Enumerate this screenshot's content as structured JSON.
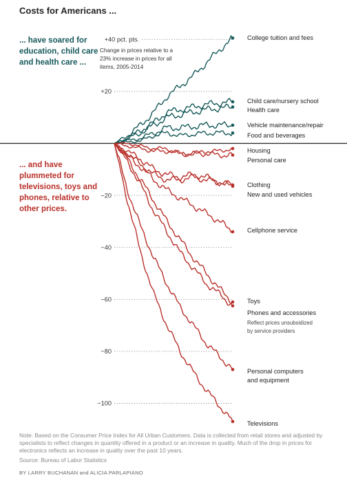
{
  "title": "Costs for Americans ...",
  "intro_up": "... have soared for education, child care and health care ...",
  "intro_down": "... and have plummeted for televisions, toys and phones, relative to other prices.",
  "explainer": [
    "Change in prices relative to a",
    "23% increase in prices for all",
    "items, 2005-2014"
  ],
  "note": "Note: Based on the Consumer Price Index for All Urban Customers. Data is collected from retail stores and adjusted by specialists to reflect changes in quantity offered in a product or an increase in quality. Much of the drop in prices for electronics reflects an increase in quality over the past 10 years.",
  "source": "Source: Bureau of Labor Statistics",
  "credit": "BY LARRY BUCHANAN and ALICIA PARLAPIANO",
  "colors": {
    "up": "#17595a",
    "down": "#b9302a",
    "baseline": "#222222",
    "grid": "#888888"
  },
  "chart_data": {
    "type": "line",
    "x_range": [
      2005,
      2014
    ],
    "ylim": [
      -110,
      42
    ],
    "ylabel": "",
    "grid": "dotted horizontal at labeled ticks",
    "yticks": [
      {
        "value": 40,
        "label": "+40 pct. pts."
      },
      {
        "value": 20,
        "label": "+20"
      },
      {
        "value": -20,
        "label": "−20"
      },
      {
        "value": -40,
        "label": "−40"
      },
      {
        "value": -60,
        "label": "−60"
      },
      {
        "value": -80,
        "label": "−80"
      },
      {
        "value": -100,
        "label": "−100"
      }
    ],
    "series": [
      {
        "name": "College tuition and fees",
        "label_lines": [
          "College tuition and fees"
        ],
        "group": "up",
        "end": 40.5,
        "points": [
          [
            2005,
            0
          ],
          [
            2006,
            3
          ],
          [
            2007,
            7
          ],
          [
            2008,
            12
          ],
          [
            2009,
            18
          ],
          [
            2010,
            22
          ],
          [
            2011,
            26
          ],
          [
            2012,
            31
          ],
          [
            2013,
            36
          ],
          [
            2014,
            40.5
          ]
        ]
      },
      {
        "name": "Child care/nursery school",
        "label_lines": [
          "Child care/nursery school"
        ],
        "group": "up",
        "end": 16,
        "points": [
          [
            2005,
            0
          ],
          [
            2006,
            2
          ],
          [
            2007,
            5
          ],
          [
            2008,
            8
          ],
          [
            2009,
            12
          ],
          [
            2010,
            13
          ],
          [
            2011,
            14
          ],
          [
            2012,
            15
          ],
          [
            2013,
            15.5
          ],
          [
            2014,
            16
          ]
        ]
      },
      {
        "name": "Health care",
        "label_lines": [
          "Health care"
        ],
        "group": "up",
        "end": 14,
        "points": [
          [
            2005,
            0
          ],
          [
            2006,
            2
          ],
          [
            2007,
            4
          ],
          [
            2008,
            7
          ],
          [
            2009,
            10
          ],
          [
            2010,
            11
          ],
          [
            2011,
            12
          ],
          [
            2012,
            13
          ],
          [
            2013,
            13.5
          ],
          [
            2014,
            14
          ]
        ]
      },
      {
        "name": "Vehicle maintenance/repair",
        "label_lines": [
          "Vehicle maintenance/repair"
        ],
        "group": "up",
        "end": 7,
        "points": [
          [
            2005,
            0
          ],
          [
            2006,
            1
          ],
          [
            2007,
            2
          ],
          [
            2008,
            4
          ],
          [
            2009,
            6
          ],
          [
            2010,
            6
          ],
          [
            2011,
            6.5
          ],
          [
            2012,
            7
          ],
          [
            2013,
            7
          ],
          [
            2014,
            7
          ]
        ]
      },
      {
        "name": "Food and beverages",
        "label_lines": [
          "Food and beverages"
        ],
        "group": "up",
        "end": 4,
        "points": [
          [
            2005,
            0
          ],
          [
            2006,
            0.5
          ],
          [
            2007,
            1
          ],
          [
            2008,
            3
          ],
          [
            2009,
            4
          ],
          [
            2010,
            3
          ],
          [
            2011,
            3.5
          ],
          [
            2012,
            4
          ],
          [
            2013,
            4
          ],
          [
            2014,
            4
          ]
        ]
      },
      {
        "name": "Housing",
        "label_lines": [
          "Housing"
        ],
        "group": "down",
        "end": -2,
        "points": [
          [
            2005,
            0
          ],
          [
            2006,
            0
          ],
          [
            2007,
            -1
          ],
          [
            2008,
            -2
          ],
          [
            2009,
            -2
          ],
          [
            2010,
            -4
          ],
          [
            2011,
            -4
          ],
          [
            2012,
            -3
          ],
          [
            2013,
            -3
          ],
          [
            2014,
            -2
          ]
        ]
      },
      {
        "name": "Personal care",
        "label_lines": [
          "Personal care"
        ],
        "group": "down",
        "end": -4.5,
        "points": [
          [
            2005,
            0
          ],
          [
            2006,
            -1
          ],
          [
            2007,
            -2
          ],
          [
            2008,
            -3
          ],
          [
            2009,
            -3
          ],
          [
            2010,
            -4
          ],
          [
            2011,
            -4
          ],
          [
            2012,
            -4
          ],
          [
            2013,
            -4.5
          ],
          [
            2014,
            -4.5
          ]
        ]
      },
      {
        "name": "Clothing",
        "label_lines": [
          "Clothing"
        ],
        "group": "down",
        "end": -16,
        "points": [
          [
            2005,
            0
          ],
          [
            2006,
            -4
          ],
          [
            2007,
            -8
          ],
          [
            2008,
            -12
          ],
          [
            2009,
            -14
          ],
          [
            2010,
            -14
          ],
          [
            2011,
            -13
          ],
          [
            2012,
            -14
          ],
          [
            2013,
            -15
          ],
          [
            2014,
            -16
          ]
        ]
      },
      {
        "name": "New and used vehicles",
        "label_lines": [
          "New and used vehicles"
        ],
        "group": "down",
        "end": -16.5,
        "points": [
          [
            2005,
            0
          ],
          [
            2006,
            -3
          ],
          [
            2007,
            -6
          ],
          [
            2008,
            -10
          ],
          [
            2009,
            -12
          ],
          [
            2010,
            -13
          ],
          [
            2011,
            -12
          ],
          [
            2012,
            -13
          ],
          [
            2013,
            -15
          ],
          [
            2014,
            -16.5
          ]
        ]
      },
      {
        "name": "Cellphone service",
        "label_lines": [
          "Cellphone service"
        ],
        "group": "down",
        "end": -34,
        "points": [
          [
            2005,
            0
          ],
          [
            2006,
            -5
          ],
          [
            2007,
            -9
          ],
          [
            2008,
            -14
          ],
          [
            2009,
            -18
          ],
          [
            2010,
            -21
          ],
          [
            2011,
            -24
          ],
          [
            2012,
            -27
          ],
          [
            2013,
            -30
          ],
          [
            2014,
            -34
          ]
        ]
      },
      {
        "name": "Toys",
        "label_lines": [
          "Toys"
        ],
        "group": "down",
        "end": -61,
        "points": [
          [
            2005,
            0
          ],
          [
            2006,
            -6
          ],
          [
            2007,
            -14
          ],
          [
            2008,
            -22
          ],
          [
            2009,
            -30
          ],
          [
            2010,
            -37
          ],
          [
            2011,
            -44
          ],
          [
            2012,
            -50
          ],
          [
            2013,
            -56
          ],
          [
            2014,
            -61
          ]
        ]
      },
      {
        "name": "Phones and accessories",
        "label_lines": [
          "Phones and accessories"
        ],
        "group": "down",
        "end": -62.5,
        "sub_lines": [
          "Reflect prices unsubsidized",
          "by service providers"
        ],
        "points": [
          [
            2005,
            0
          ],
          [
            2006,
            -7
          ],
          [
            2007,
            -16
          ],
          [
            2008,
            -26
          ],
          [
            2009,
            -34
          ],
          [
            2010,
            -42
          ],
          [
            2011,
            -48
          ],
          [
            2012,
            -54
          ],
          [
            2013,
            -58
          ],
          [
            2014,
            -62.5
          ]
        ]
      },
      {
        "name": "Personal computers and equipment",
        "label_lines": [
          "Personal computers",
          "and equipment"
        ],
        "group": "down",
        "end": -87,
        "points": [
          [
            2005,
            0
          ],
          [
            2006,
            -18
          ],
          [
            2007,
            -32
          ],
          [
            2008,
            -44
          ],
          [
            2009,
            -54
          ],
          [
            2010,
            -63
          ],
          [
            2011,
            -70
          ],
          [
            2012,
            -77
          ],
          [
            2013,
            -82
          ],
          [
            2014,
            -87
          ]
        ]
      },
      {
        "name": "Televisions",
        "label_lines": [
          "Televisions"
        ],
        "group": "down",
        "end": -107,
        "points": [
          [
            2005,
            0
          ],
          [
            2006,
            -22
          ],
          [
            2007,
            -42
          ],
          [
            2008,
            -58
          ],
          [
            2009,
            -70
          ],
          [
            2010,
            -80
          ],
          [
            2011,
            -88
          ],
          [
            2012,
            -95
          ],
          [
            2013,
            -101
          ],
          [
            2014,
            -107
          ]
        ]
      }
    ]
  }
}
